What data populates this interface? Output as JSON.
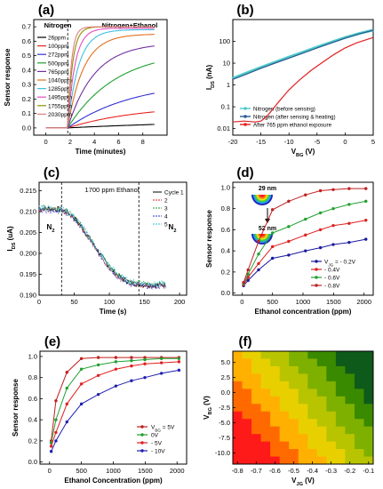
{
  "chart_data": [
    {
      "panel": "(a)",
      "type": "line",
      "xlabel": "Time (minutes)",
      "ylabel": "Sensor response",
      "xlim": [
        -1,
        10
      ],
      "ylim": [
        -0.05,
        0.75
      ],
      "xticks": [
        0,
        2,
        4,
        6,
        8
      ],
      "yticks": [
        0.0,
        0.1,
        0.2,
        0.3,
        0.4,
        0.5,
        0.6,
        0.7
      ],
      "ytick_labels": [
        "0.0",
        "0.1",
        "0.2",
        "0.3",
        "0.4",
        "0.5",
        "0.6",
        "0.7"
      ],
      "annotations": [
        "Nitrogen",
        "Nitrogen+Ethanol"
      ],
      "switch_x": 1.8,
      "series": [
        {
          "name": "26ppm",
          "color": "#000000",
          "final": 0.06,
          "tau": 14.0
        },
        {
          "name": "100ppm",
          "color": "#e8231d",
          "final": 0.16,
          "tau": 6.0
        },
        {
          "name": "272ppm",
          "color": "#3030d0",
          "final": 0.33,
          "tau": 5.5
        },
        {
          "name": "500ppm",
          "color": "#20a030",
          "final": 0.54,
          "tau": 4.0
        },
        {
          "name": "765ppm",
          "color": "#7030a0",
          "final": 0.59,
          "tau": 2.2
        },
        {
          "name": "1040ppm",
          "color": "#e07020",
          "final": 0.65,
          "tau": 1.3
        },
        {
          "name": "1285ppm",
          "color": "#40c0e0",
          "final": 0.68,
          "tau": 0.9
        },
        {
          "name": "1495ppm",
          "color": "#e050c0",
          "final": 0.69,
          "tau": 0.6
        },
        {
          "name": "1755ppm",
          "color": "#909000",
          "final": 0.7,
          "tau": 0.4
        },
        {
          "name": "2030ppm",
          "color": "#e08080",
          "final": 0.7,
          "tau": 0.3
        }
      ]
    },
    {
      "panel": "(b)",
      "type": "line",
      "xlabel": "V_BG (V)",
      "ylabel": "I_DS (nA)",
      "yscale": "log",
      "xlim": [
        -20,
        5
      ],
      "ylim": [
        0.005,
        1000
      ],
      "xticks": [
        -20,
        -15,
        -10,
        -5,
        0,
        5
      ],
      "yticks": [
        0.01,
        0.1,
        1,
        10,
        100
      ],
      "ytick_labels": [
        "0.01",
        "0.1",
        "1",
        "10",
        "100"
      ],
      "series": [
        {
          "name": "Nitrogen (before sensing)",
          "color": "#4ec8c8",
          "x": [
            -20,
            -17.5,
            -15,
            -12.5,
            -10,
            -7.5,
            -5,
            -2.5,
            0,
            2.5,
            5
          ],
          "y": [
            2.0,
            3.6,
            6.4,
            11,
            19,
            32,
            55,
            90,
            150,
            230,
            330
          ]
        },
        {
          "name": "Nitrogen (after sensing & heating)",
          "color": "#2a5a90",
          "x": [
            -20,
            -17.5,
            -15,
            -12.5,
            -10,
            -7.5,
            -5,
            -2.5,
            0,
            2.5,
            5
          ],
          "y": [
            1.8,
            3.2,
            5.8,
            10,
            17,
            29,
            50,
            85,
            140,
            220,
            320
          ]
        },
        {
          "name": "After 765 ppm ethanol exposure",
          "color": "#e02020",
          "x": [
            -20,
            -18,
            -16,
            -15,
            -14,
            -13,
            -12,
            -11,
            -10,
            -8,
            -6,
            -4,
            -2,
            0,
            2,
            5
          ],
          "y": [
            0.02,
            0.022,
            0.02,
            0.022,
            0.035,
            0.07,
            0.15,
            0.3,
            0.6,
            1.8,
            4.8,
            11,
            25,
            50,
            85,
            150
          ]
        }
      ]
    },
    {
      "panel": "(c)",
      "type": "scatter",
      "xlabel": "Time (s)",
      "ylabel": "I_DS (uA)",
      "xlim": [
        0,
        210
      ],
      "ylim": [
        0.19,
        0.217
      ],
      "xticks": [
        0,
        50,
        100,
        150,
        200
      ],
      "yticks": [
        0.19,
        0.195,
        0.2,
        0.205,
        0.21,
        0.215
      ],
      "ytick_labels": [
        "0.190",
        "0.195",
        "0.200",
        "0.205",
        "0.210",
        "0.215"
      ],
      "annotations": [
        "1700 ppm  Ethanol",
        "N2",
        "N2"
      ],
      "switch_x": [
        32,
        142
      ],
      "series": [
        {
          "name": "Cycle 1",
          "color": "#000000",
          "offset": 0.0
        },
        {
          "name": "2",
          "color": "#e02020",
          "offset": -0.0002
        },
        {
          "name": "3",
          "color": "#20a030",
          "offset": 0.0002
        },
        {
          "name": "4",
          "color": "#3030d0",
          "offset": -0.0003
        },
        {
          "name": "5",
          "color": "#30c0d0",
          "offset": 0.0003
        }
      ],
      "curve_x": [
        0,
        30,
        40,
        50,
        60,
        70,
        80,
        90,
        100,
        110,
        120,
        130,
        140,
        150,
        160,
        170,
        180
      ],
      "curve_y": [
        0.2108,
        0.2105,
        0.2098,
        0.2085,
        0.2065,
        0.204,
        0.2015,
        0.199,
        0.1968,
        0.195,
        0.1938,
        0.193,
        0.1927,
        0.1925,
        0.1924,
        0.1924,
        0.1925
      ]
    },
    {
      "panel": "(d)",
      "type": "line",
      "xlabel": "Ethanol concentration (ppm)",
      "ylabel": "Sensor response",
      "xlim": [
        -150,
        2150
      ],
      "ylim": [
        -0.02,
        1.05
      ],
      "xticks": [
        0,
        500,
        1000,
        1500,
        2000
      ],
      "yticks": [
        0.0,
        0.2,
        0.4,
        0.6,
        0.8,
        1.0
      ],
      "ytick_labels": [
        "0.0",
        "0.2",
        "0.4",
        "0.6",
        "0.8",
        "1.0"
      ],
      "annotations": [
        "29 nm",
        "52 nm"
      ],
      "x": [
        26,
        100,
        272,
        500,
        765,
        1040,
        1285,
        1495,
        1755,
        2030
      ],
      "series": [
        {
          "name": "V_JG = - 0.2V",
          "color": "#1a1aa0",
          "values": [
            0.07,
            0.12,
            0.22,
            0.33,
            0.36,
            0.4,
            0.43,
            0.46,
            0.48,
            0.51
          ]
        },
        {
          "name": "- 0.4V",
          "color": "#e02020",
          "values": [
            0.08,
            0.15,
            0.28,
            0.44,
            0.49,
            0.55,
            0.6,
            0.64,
            0.66,
            0.69
          ]
        },
        {
          "name": "- 0.6V",
          "color": "#20a030",
          "values": [
            0.09,
            0.18,
            0.37,
            0.57,
            0.63,
            0.7,
            0.76,
            0.8,
            0.84,
            0.87
          ]
        },
        {
          "name": "- 0.8V",
          "color": "#c02020",
          "values": [
            0.1,
            0.22,
            0.49,
            0.79,
            0.87,
            0.93,
            0.97,
            0.98,
            0.99,
            0.99
          ]
        }
      ]
    },
    {
      "panel": "(e)",
      "type": "line",
      "xlabel": "Ethanol Concentration (ppm)",
      "ylabel": "Sensor response",
      "xlim": [
        -150,
        2150
      ],
      "ylim": [
        -0.02,
        1.05
      ],
      "xticks": [
        0,
        500,
        1000,
        1500,
        2000
      ],
      "yticks": [
        0.0,
        0.2,
        0.4,
        0.6,
        0.8,
        1.0
      ],
      "ytick_labels": [
        "0.0",
        "0.2",
        "0.4",
        "0.6",
        "0.8",
        "1.0"
      ],
      "x": [
        26,
        100,
        272,
        500,
        765,
        1040,
        1285,
        1495,
        1755,
        2030
      ],
      "series": [
        {
          "name": "V_BG = 5V",
          "color": "#c02020",
          "values": [
            0.2,
            0.58,
            0.85,
            0.98,
            0.99,
            0.99,
            0.99,
            0.99,
            0.99,
            0.99
          ]
        },
        {
          "name": "0V",
          "color": "#20a030",
          "values": [
            0.18,
            0.4,
            0.7,
            0.88,
            0.92,
            0.95,
            0.96,
            0.97,
            0.98,
            0.98
          ]
        },
        {
          "name": "- 5V",
          "color": "#e02020",
          "values": [
            0.15,
            0.28,
            0.55,
            0.74,
            0.82,
            0.88,
            0.91,
            0.93,
            0.94,
            0.95
          ]
        },
        {
          "name": "- 10V",
          "color": "#2020b0",
          "values": [
            0.1,
            0.2,
            0.38,
            0.55,
            0.64,
            0.72,
            0.77,
            0.8,
            0.84,
            0.87
          ]
        }
      ]
    },
    {
      "panel": "(f)",
      "type": "heatmap",
      "xlabel": "V_JG (V)",
      "ylabel": "V_BG (V)",
      "xticks": [
        "-0.8",
        "-0.7",
        "-0.6",
        "-0.5",
        "-0.4",
        "-0.3",
        "-0.2",
        "-0.1"
      ],
      "yticks": [
        "5.0",
        "2.5",
        "0.0",
        "-2.5",
        "-5.0",
        "-7.5",
        "-10.0"
      ],
      "x": [
        -0.8,
        -0.75,
        -0.7,
        -0.65,
        -0.6,
        -0.55,
        -0.5,
        -0.45,
        -0.4,
        -0.35,
        -0.3,
        -0.25,
        -0.2,
        -0.15,
        -0.1
      ],
      "y": [
        6.25,
        5.0,
        3.75,
        2.5,
        1.25,
        0.0,
        -1.25,
        -2.5,
        -3.75,
        -5.0,
        -6.25,
        -7.5,
        -8.75,
        -10.0,
        -11.25
      ],
      "color_scale": [
        "#ff1a1a",
        "#ff6a00",
        "#ffb000",
        "#e8d000",
        "#b8c400",
        "#7eb000",
        "#3a8a00",
        "#0e5a1a"
      ]
    }
  ]
}
